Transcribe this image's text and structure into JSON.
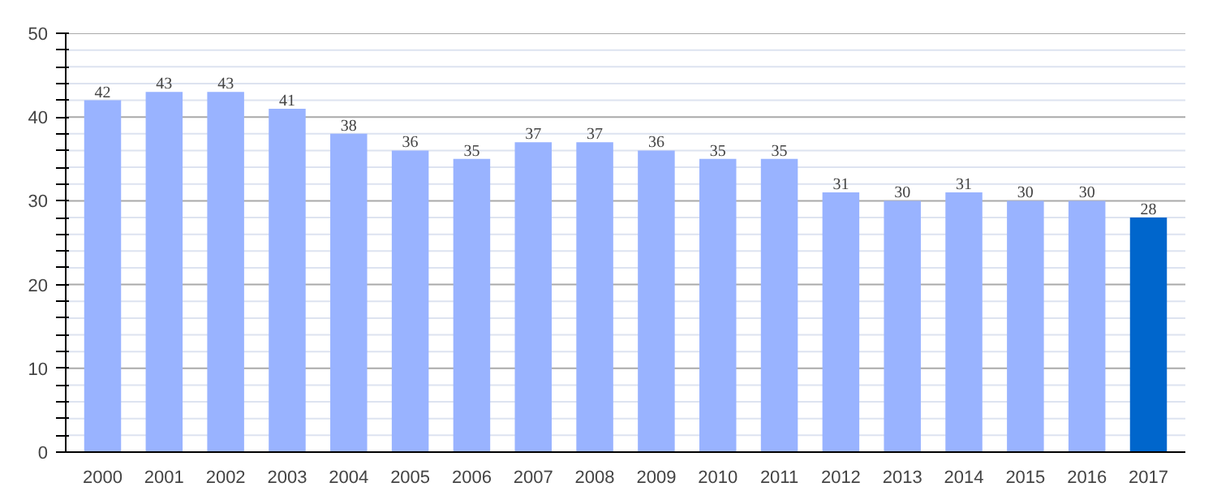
{
  "chart_data": {
    "type": "bar",
    "categories": [
      "2000",
      "2001",
      "2002",
      "2003",
      "2004",
      "2005",
      "2006",
      "2007",
      "2008",
      "2009",
      "2010",
      "2011",
      "2012",
      "2013",
      "2014",
      "2015",
      "2016",
      "2017"
    ],
    "values": [
      42,
      43,
      43,
      41,
      38,
      36,
      35,
      37,
      37,
      36,
      35,
      35,
      31,
      30,
      31,
      30,
      30,
      28
    ],
    "colors": [
      "#99b3ff",
      "#99b3ff",
      "#99b3ff",
      "#99b3ff",
      "#99b3ff",
      "#99b3ff",
      "#99b3ff",
      "#99b3ff",
      "#99b3ff",
      "#99b3ff",
      "#99b3ff",
      "#99b3ff",
      "#99b3ff",
      "#99b3ff",
      "#99b3ff",
      "#99b3ff",
      "#99b3ff",
      "#0066cc"
    ],
    "ylim": [
      0,
      50
    ],
    "yticks": [
      0,
      {
        "value": 2,
        "label": null
      },
      {
        "value": 4,
        "label": null
      },
      {
        "value": 6,
        "label": null
      },
      {
        "value": 8,
        "label": null
      },
      10,
      {
        "value": 12,
        "label": null
      },
      {
        "value": 14,
        "label": null
      },
      {
        "value": 16,
        "label": null
      },
      {
        "value": 18,
        "label": null
      },
      20,
      {
        "value": 22,
        "label": null
      },
      {
        "value": 24,
        "label": null
      },
      {
        "value": 26,
        "label": null
      },
      {
        "value": 28,
        "label": null
      },
      30,
      {
        "value": 32,
        "label": null
      },
      {
        "value": 34,
        "label": null
      },
      {
        "value": 36,
        "label": null
      },
      {
        "value": 38,
        "label": null
      },
      40,
      {
        "value": 42,
        "label": null
      },
      {
        "value": 44,
        "label": null
      },
      {
        "value": 46,
        "label": null
      },
      {
        "value": 48,
        "label": null
      },
      50
    ],
    "grid": "y",
    "data_labels": true
  }
}
